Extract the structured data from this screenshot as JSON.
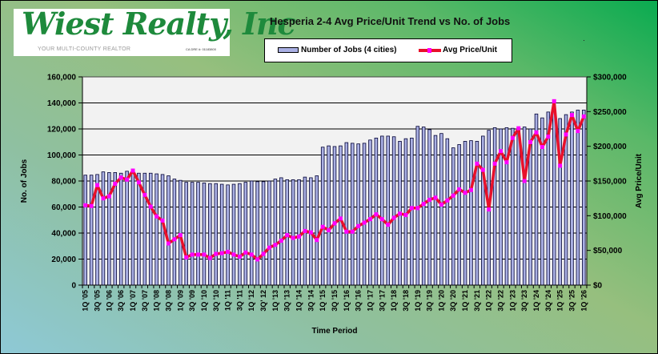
{
  "logo": {
    "brand": "Wiest Realty, Inc",
    "tagline": "YOUR MULTI-COUNTY REALTOR",
    "license": "CA DRE #: 01183800"
  },
  "chart_data": {
    "type": "bar+line",
    "title": "Hesperia 2-4 Avg Price/Unit Trend vs No. of Jobs",
    "xlabel": "Time Period",
    "ylabel": "No. of Jobs",
    "y2label": "Avg Price/Unit",
    "ylim": [
      0,
      160000
    ],
    "y2lim": [
      0,
      300000
    ],
    "yticks": [
      "0",
      "20,000",
      "40,000",
      "60,000",
      "80,000",
      "100,000",
      "120,000",
      "140,000",
      "160,000"
    ],
    "y2ticks": [
      "$0",
      "$50,000",
      "$100,000",
      "$150,000",
      "$200,000",
      "$250,000",
      "$300,000"
    ],
    "grid": true,
    "legend_position": "top-center",
    "categories": [
      "1Q '05",
      "2Q '05",
      "3Q '05",
      "4Q '05",
      "1Q '06",
      "2Q '06",
      "3Q '06",
      "4Q '06",
      "1Q '07",
      "2Q '07",
      "3Q '07",
      "4Q '07",
      "1Q '08",
      "2Q '08",
      "3Q '08",
      "4Q '08",
      "1Q '09",
      "2Q '09",
      "3Q '09",
      "4Q '09",
      "1Q '10",
      "2Q '10",
      "3Q '10",
      "4Q '10",
      "1Q '11",
      "2Q '11",
      "3Q '11",
      "4Q '11",
      "1Q '12",
      "2Q '12",
      "3Q' 12",
      "4Q '12",
      "1Q '13",
      "2Q '13",
      "3Q '13",
      "4Q '13",
      "1Q '14",
      "2Q '14",
      "3Q '14",
      "4Q '14",
      "1Q '15",
      "2Q '15",
      "3Q '15",
      "4Q '15",
      "1Q '16",
      "2Q '16",
      "3Q '16",
      "4Q '16",
      "1Q '17",
      "2Q '17",
      "3Q '17",
      "4Q '17",
      "1Q '18",
      "2Q '18",
      "3Q '18",
      "4Q '18",
      "1Q '19",
      "2Q '19",
      "3Q '19",
      "4Q '19",
      "1Q '20",
      "2Q '20",
      "3Q '20",
      "4Q '20",
      "1Q '21",
      "2Q '21",
      "3Q '21",
      "4Q '21",
      "1Q '22",
      "2Q '22",
      "3Q '22",
      "4Q '22",
      "1Q '23",
      "2Q '23",
      "3Q '23",
      "4Q '23",
      "1Q '24",
      "2Q '24",
      "3Q '24",
      "4Q '24",
      "1Q '25",
      "2Q '25",
      "3Q '25",
      "4Q '25",
      "1Q '26"
    ],
    "series": [
      {
        "name": "Number of Jobs (4 cities)",
        "type": "bar",
        "axis": "left",
        "color": "#aab0e4",
        "values": [
          84500,
          84500,
          85000,
          87000,
          86500,
          86500,
          86000,
          87500,
          86000,
          86000,
          86000,
          86000,
          85500,
          85000,
          84000,
          81500,
          80500,
          79000,
          79000,
          79000,
          78500,
          78000,
          78000,
          77500,
          77000,
          77500,
          78000,
          79000,
          80000,
          79500,
          79500,
          80000,
          81500,
          82500,
          81000,
          81000,
          81000,
          83000,
          82500,
          84000,
          106000,
          107000,
          106500,
          107000,
          109500,
          109000,
          108500,
          109000,
          111500,
          113000,
          114500,
          114500,
          114000,
          110500,
          112500,
          113000,
          122000,
          121500,
          119500,
          115000,
          116500,
          112500,
          105500,
          108000,
          110500,
          111000,
          110500,
          114500,
          119000,
          121000,
          120000,
          121000,
          120500,
          119500,
          121500,
          120000,
          131500,
          128500,
          133000,
          133500,
          128000,
          131000,
          133000,
          134500,
          134500
        ]
      },
      {
        "name": "Avg Price/Unit",
        "type": "line",
        "axis": "right",
        "color": "#e8102a",
        "marker_color": "#ff00ff",
        "values": [
          115000,
          114000,
          144000,
          125000,
          128000,
          146000,
          155000,
          152000,
          165000,
          148000,
          130000,
          113000,
          99000,
          93000,
          60000,
          66000,
          72000,
          40000,
          44000,
          44000,
          44000,
          39000,
          45000,
          46000,
          48000,
          44000,
          41000,
          47000,
          44000,
          37000,
          45000,
          54000,
          58000,
          64000,
          72000,
          68000,
          70000,
          78000,
          76000,
          65000,
          84000,
          79000,
          89000,
          96000,
          77000,
          77000,
          85000,
          90000,
          95000,
          102000,
          95000,
          87000,
          97000,
          103000,
          101000,
          111000,
          111000,
          117000,
          123000,
          126000,
          116000,
          122000,
          129000,
          138000,
          133000,
          137000,
          175000,
          166000,
          109000,
          175000,
          193000,
          177000,
          212000,
          226000,
          150000,
          206000,
          220000,
          199000,
          214000,
          265000,
          172000,
          217000,
          245000,
          222000,
          243000
        ]
      }
    ]
  }
}
